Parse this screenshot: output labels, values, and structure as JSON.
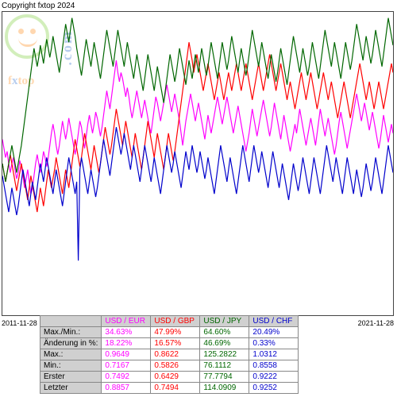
{
  "copyright": "Copyright fxtop 2024",
  "logo": {
    "brand_f": "f",
    "brand_x": "x",
    "brand_top": "top",
    "dotcom": ".com"
  },
  "chart": {
    "type": "line",
    "x_start_label": "2011-11-28",
    "x_end_label": "2021-11-28",
    "ylim": [
      0,
      100
    ],
    "background_color": "#ffffff",
    "border_color": "#444444",
    "line_width": 1.2,
    "series": [
      {
        "name": "USD / EUR",
        "color": "#ff00ff",
        "points": [
          58,
          55,
          52,
          54,
          50,
          47,
          50,
          52,
          48,
          45,
          47,
          51,
          49,
          46,
          42,
          45,
          48,
          44,
          40,
          42,
          46,
          50,
          53,
          50,
          47,
          50,
          54,
          52,
          49,
          52,
          56,
          60,
          63,
          60,
          56,
          53,
          56,
          60,
          64,
          61,
          58,
          61,
          65,
          62,
          59,
          56,
          53,
          56,
          60,
          64,
          62,
          58,
          55,
          59,
          63,
          66,
          63,
          60,
          63,
          67,
          65,
          62,
          59,
          62,
          66,
          70,
          74,
          71,
          68,
          72,
          76,
          80,
          84,
          80,
          77,
          80,
          78,
          75,
          72,
          75,
          72,
          68,
          65,
          68,
          71,
          74,
          71,
          68,
          65,
          68,
          71,
          68,
          65,
          62,
          60,
          64,
          68,
          72,
          70,
          67,
          64,
          67,
          70,
          73,
          76,
          73,
          70,
          67,
          70,
          73,
          70,
          67,
          64,
          60,
          56,
          60,
          64,
          67,
          70,
          73,
          70,
          67,
          64,
          67,
          70,
          67,
          64,
          61,
          58,
          62,
          66,
          63,
          60,
          63,
          66,
          69,
          72,
          69,
          66,
          63,
          66,
          69,
          72,
          69,
          66,
          63,
          60,
          63,
          66,
          69,
          66,
          63,
          60,
          57,
          54,
          57,
          60,
          64,
          68,
          65,
          62,
          59,
          62,
          65,
          68,
          71,
          68,
          65,
          62,
          59,
          62,
          66,
          70,
          67,
          64,
          61,
          58,
          62,
          66,
          63,
          60,
          57,
          54,
          57,
          60,
          63,
          60,
          64,
          68,
          65,
          62,
          59,
          56,
          59,
          62,
          65,
          62,
          59,
          56,
          60,
          64,
          68,
          65,
          62,
          59,
          62,
          65,
          62,
          59,
          56,
          53,
          56,
          60,
          64,
          67,
          64,
          61,
          58,
          55,
          58,
          61,
          64,
          67,
          70,
          73,
          70,
          67,
          64,
          67,
          70,
          67,
          64,
          61,
          64,
          67,
          64,
          61,
          58,
          55,
          58,
          62,
          66,
          63,
          60,
          57,
          60,
          63,
          60
        ]
      },
      {
        "name": "USD / GBP",
        "color": "#ff0000",
        "points": [
          50,
          47,
          44,
          47,
          50,
          53,
          50,
          47,
          44,
          41,
          44,
          47,
          50,
          47,
          44,
          41,
          38,
          42,
          46,
          43,
          40,
          37,
          34,
          38,
          42,
          39,
          36,
          40,
          44,
          48,
          45,
          42,
          45,
          48,
          52,
          49,
          46,
          43,
          40,
          44,
          48,
          45,
          42,
          46,
          50,
          54,
          58,
          55,
          52,
          49,
          52,
          56,
          60,
          57,
          54,
          51,
          48,
          52,
          56,
          53,
          50,
          47,
          50,
          54,
          58,
          62,
          59,
          56,
          53,
          56,
          60,
          64,
          68,
          65,
          62,
          59,
          56,
          60,
          64,
          61,
          58,
          55,
          52,
          56,
          60,
          57,
          54,
          51,
          48,
          52,
          56,
          60,
          64,
          61,
          58,
          55,
          52,
          56,
          60,
          57,
          54,
          51,
          48,
          52,
          56,
          60,
          57,
          54,
          51,
          54,
          58,
          62,
          66,
          70,
          74,
          78,
          82,
          86,
          90,
          87,
          84,
          80,
          83,
          86,
          83,
          80,
          77,
          74,
          77,
          80,
          83,
          80,
          77,
          74,
          71,
          74,
          77,
          80,
          77,
          74,
          71,
          74,
          77,
          80,
          77,
          74,
          77,
          80,
          83,
          80,
          77,
          74,
          77,
          80,
          83,
          80,
          77,
          74,
          71,
          74,
          77,
          80,
          83,
          80,
          77,
          74,
          77,
          80,
          83,
          86,
          83,
          80,
          77,
          74,
          77,
          80,
          83,
          80,
          77,
          74,
          71,
          74,
          77,
          74,
          71,
          68,
          71,
          74,
          77,
          80,
          77,
          74,
          71,
          74,
          77,
          80,
          77,
          74,
          71,
          68,
          71,
          74,
          77,
          80,
          77,
          74,
          71,
          74,
          77,
          74,
          71,
          68,
          65,
          68,
          71,
          74,
          77,
          74,
          71,
          68,
          65,
          68,
          71,
          74,
          77,
          80,
          83,
          80,
          77,
          74,
          71,
          74,
          77,
          74,
          71,
          68,
          71,
          74,
          77,
          74,
          71,
          68,
          71,
          74,
          77,
          80,
          83,
          80
        ]
      },
      {
        "name": "USD / JPY",
        "color": "#006600",
        "points": [
          50,
          47,
          44,
          47,
          50,
          53,
          56,
          53,
          50,
          47,
          50,
          53,
          56,
          60,
          64,
          68,
          72,
          76,
          80,
          84,
          88,
          85,
          82,
          85,
          89,
          86,
          83,
          87,
          91,
          88,
          85,
          88,
          92,
          89,
          86,
          83,
          80,
          84,
          88,
          92,
          96,
          93,
          90,
          94,
          98,
          95,
          92,
          88,
          85,
          82,
          79,
          83,
          87,
          91,
          88,
          85,
          82,
          86,
          90,
          87,
          84,
          81,
          78,
          82,
          86,
          90,
          94,
          91,
          88,
          85,
          82,
          86,
          90,
          94,
          91,
          88,
          85,
          82,
          86,
          90,
          87,
          84,
          81,
          78,
          82,
          86,
          83,
          80,
          77,
          74,
          78,
          82,
          86,
          83,
          80,
          77,
          74,
          78,
          82,
          79,
          76,
          73,
          70,
          74,
          78,
          82,
          86,
          83,
          80,
          77,
          80,
          84,
          88,
          85,
          82,
          79,
          76,
          80,
          84,
          81,
          78,
          82,
          86,
          83,
          80,
          84,
          88,
          85,
          82,
          79,
          82,
          86,
          90,
          87,
          84,
          81,
          78,
          82,
          86,
          90,
          87,
          84,
          81,
          84,
          88,
          92,
          89,
          86,
          83,
          80,
          84,
          88,
          85,
          82,
          79,
          82,
          86,
          90,
          94,
          91,
          88,
          85,
          82,
          86,
          90,
          87,
          84,
          81,
          78,
          82,
          86,
          83,
          80,
          77,
          80,
          84,
          88,
          85,
          82,
          79,
          76,
          80,
          84,
          88,
          92,
          89,
          86,
          83,
          80,
          84,
          88,
          85,
          82,
          79,
          82,
          86,
          90,
          87,
          84,
          81,
          78,
          82,
          86,
          90,
          94,
          91,
          88,
          85,
          82,
          86,
          90,
          87,
          84,
          81,
          78,
          82,
          86,
          90,
          87,
          84,
          81,
          84,
          88,
          92,
          96,
          93,
          90,
          87,
          84,
          88,
          92,
          89,
          86,
          83,
          86,
          90,
          94,
          91,
          88,
          85,
          82,
          86,
          90,
          94,
          98,
          95,
          92,
          89
        ]
      },
      {
        "name": "USD / CHF",
        "color": "#0000cc",
        "points": [
          46,
          43,
          40,
          37,
          34,
          38,
          42,
          39,
          36,
          33,
          36,
          40,
          44,
          48,
          45,
          42,
          39,
          36,
          40,
          44,
          41,
          38,
          42,
          46,
          50,
          47,
          44,
          48,
          52,
          49,
          46,
          43,
          40,
          44,
          48,
          45,
          42,
          39,
          36,
          40,
          44,
          48,
          52,
          49,
          46,
          43,
          40,
          44,
          18,
          48,
          52,
          49,
          46,
          43,
          40,
          44,
          48,
          45,
          42,
          39,
          42,
          46,
          50,
          54,
          58,
          55,
          52,
          49,
          46,
          50,
          54,
          58,
          62,
          59,
          56,
          53,
          56,
          60,
          57,
          54,
          51,
          48,
          52,
          56,
          53,
          50,
          47,
          44,
          48,
          52,
          56,
          53,
          50,
          47,
          44,
          48,
          52,
          49,
          46,
          43,
          40,
          44,
          48,
          52,
          56,
          53,
          50,
          47,
          50,
          54,
          51,
          48,
          45,
          42,
          46,
          50,
          54,
          51,
          48,
          52,
          56,
          53,
          50,
          47,
          50,
          54,
          51,
          48,
          45,
          48,
          52,
          49,
          46,
          43,
          40,
          44,
          48,
          52,
          56,
          53,
          50,
          47,
          44,
          48,
          52,
          49,
          46,
          43,
          40,
          44,
          48,
          52,
          56,
          53,
          50,
          47,
          44,
          48,
          52,
          56,
          53,
          50,
          47,
          50,
          54,
          51,
          48,
          45,
          42,
          46,
          50,
          54,
          51,
          48,
          45,
          42,
          46,
          50,
          47,
          44,
          41,
          38,
          42,
          46,
          50,
          47,
          44,
          41,
          44,
          48,
          52,
          49,
          46,
          43,
          40,
          44,
          48,
          52,
          49,
          46,
          43,
          40,
          44,
          48,
          52,
          56,
          53,
          50,
          47,
          44,
          48,
          52,
          49,
          46,
          43,
          40,
          44,
          48,
          52,
          49,
          46,
          43,
          40,
          44,
          48,
          45,
          42,
          39,
          42,
          46,
          50,
          47,
          44,
          41,
          44,
          48,
          52,
          49,
          46,
          43,
          40,
          44,
          48,
          52,
          56,
          53,
          50,
          47
        ]
      }
    ]
  },
  "table": {
    "header_bg": "#d0d0d0",
    "columns": [
      {
        "label": "USD / EUR",
        "color": "#ff00ff"
      },
      {
        "label": "USD / GBP",
        "color": "#ff0000"
      },
      {
        "label": "USD / JPY",
        "color": "#006600"
      },
      {
        "label": "USD / CHF",
        "color": "#0000cc"
      }
    ],
    "rows": [
      {
        "label": "Max./Min.:",
        "cells": [
          "34.63%",
          "47.99%",
          "64.60%",
          "20.49%"
        ]
      },
      {
        "label": "Änderung in %:",
        "cells": [
          "18.22%",
          "16.57%",
          "46.69%",
          "0.33%"
        ]
      },
      {
        "label": "Max.:",
        "cells": [
          "0.9649",
          "0.8622",
          "125.2822",
          "1.0312"
        ]
      },
      {
        "label": "Min.:",
        "cells": [
          "0.7167",
          "0.5826",
          "76.1112",
          "0.8558"
        ]
      },
      {
        "label": "Erster",
        "cells": [
          "0.7492",
          "0.6429",
          "77.7794",
          "0.9222"
        ]
      },
      {
        "label": "Letzter",
        "cells": [
          "0.8857",
          "0.7494",
          "114.0909",
          "0.9252"
        ]
      }
    ]
  }
}
